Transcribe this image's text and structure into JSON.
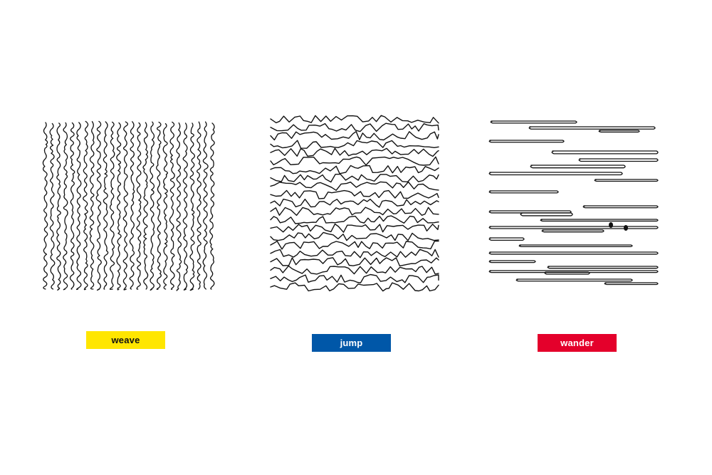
{
  "panels": [
    {
      "id": "weave",
      "label": "weave",
      "tag_color": "#FFE600",
      "text_color": "#111111",
      "pattern": "vertical-squiggles"
    },
    {
      "id": "jump",
      "label": "jump",
      "tag_color": "#0057A8",
      "text_color": "#FFFFFF",
      "pattern": "horizontal-zigzag-lines"
    },
    {
      "id": "wander",
      "label": "wander",
      "tag_color": "#E4002B",
      "text_color": "#FFFFFF",
      "pattern": "horizontal-loops"
    }
  ]
}
